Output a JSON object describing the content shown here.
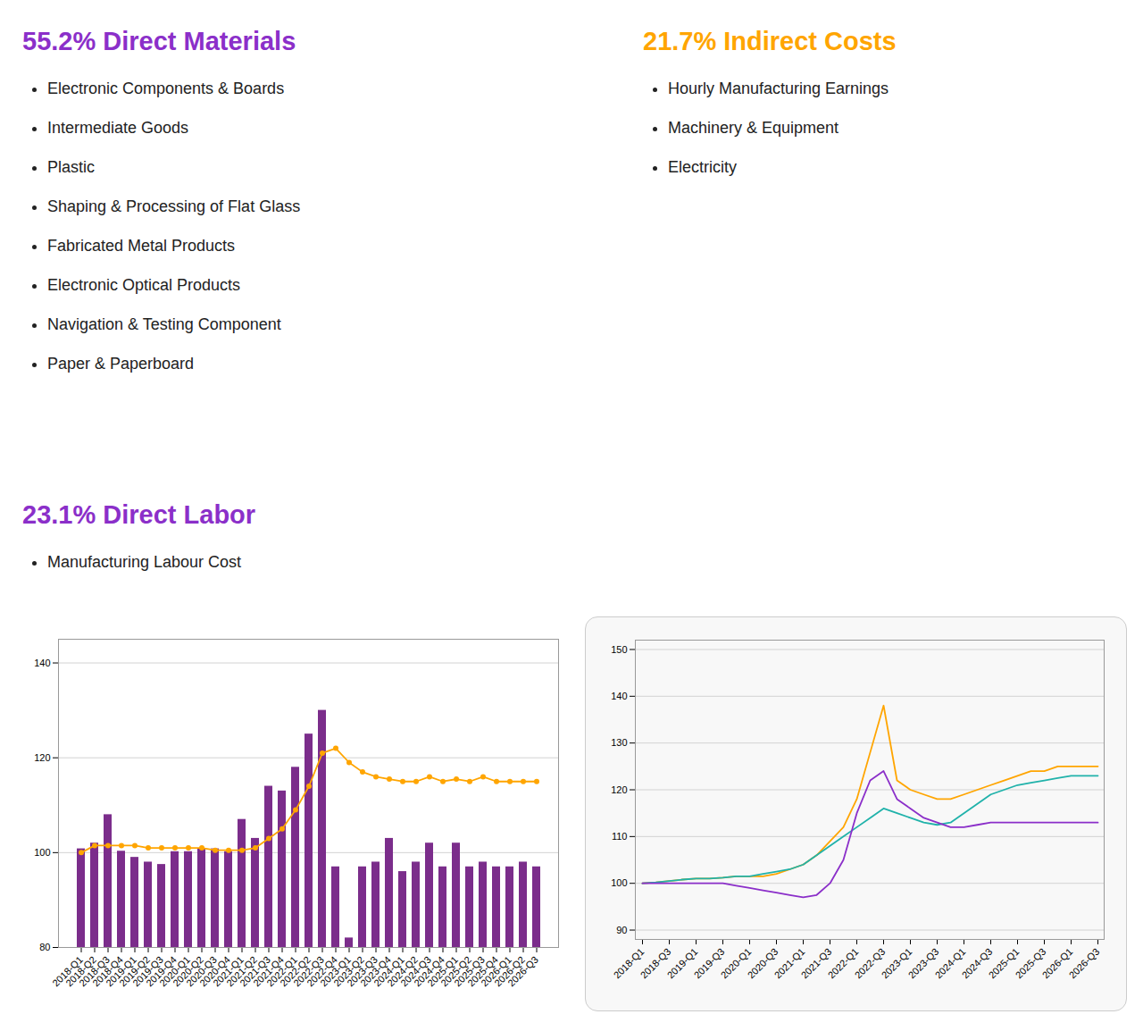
{
  "annotations": [
    {
      "text": "55.2% Direct Materials",
      "color": "#8B2FC9",
      "items_color": "#222222",
      "items": [
        "Electronic Components & Boards",
        "Intermediate Goods",
        "Plastic",
        "Shaping & Processing of Flat Glass",
        "Fabricated Metal Products",
        "Electronic Optical Products",
        "Navigation & Testing Component",
        "Paper & Paperboard"
      ]
    },
    {
      "text": "21.7% Indirect Costs",
      "color": "#FFA500",
      "items_color": "#222222",
      "items": [
        "Hourly Manufacturing Earnings",
        "Machinery & Equipment",
        "Electricity"
      ]
    },
    {
      "text": "23.1% Direct Labor",
      "color": "#8B2FC9",
      "items_color": "#222222",
      "items": [
        "Manufacturing Labour Cost"
      ]
    }
  ],
  "chart_data": [
    {
      "type": "bar",
      "categories": [
        "2018-Q1",
        "2018-Q2",
        "2018-Q3",
        "2018-Q4",
        "2019-Q1",
        "2019-Q2",
        "2019-Q3",
        "2019-Q4",
        "2020-Q1",
        "2020-Q2",
        "2020-Q3",
        "2020-Q4",
        "2021-Q1",
        "2021-Q2",
        "2021-Q3",
        "2021-Q4",
        "2022-Q1",
        "2022-Q2",
        "2022-Q3",
        "2022-Q4",
        "2023-Q1",
        "2023-Q2",
        "2023-Q3",
        "2023-Q4",
        "2024-Q1",
        "2024-Q2",
        "2024-Q3",
        "2024-Q4",
        "2025-Q1",
        "2025-Q2",
        "2025-Q3",
        "2025-Q4",
        "2026-Q1",
        "2026-Q2",
        "2026-Q3"
      ],
      "series": [
        {
          "type": "bar",
          "color": "#7B2D8B",
          "values": [
            100.8,
            102,
            108,
            100.3,
            99,
            98,
            97.5,
            100.2,
            100.2,
            100.8,
            100.8,
            100.2,
            107,
            103,
            114,
            113,
            118,
            125,
            130,
            97,
            82,
            97,
            98,
            103,
            96,
            98,
            102,
            97,
            102,
            97,
            98,
            97,
            97,
            98,
            97
          ]
        },
        {
          "type": "line",
          "color": "#FFA500",
          "marker": "circle",
          "values": [
            100,
            101.5,
            101.5,
            101.5,
            101.5,
            101,
            101,
            101,
            101,
            101,
            100.5,
            100.5,
            100.5,
            101,
            103,
            105,
            109,
            114,
            121,
            122,
            119,
            117,
            116,
            115.5,
            115,
            115,
            116,
            115,
            115.5,
            115,
            116,
            115,
            115,
            115,
            115
          ]
        }
      ],
      "ylim": [
        80,
        145
      ],
      "yticks": [
        80,
        100,
        120,
        140
      ],
      "grid": true
    },
    {
      "type": "line",
      "categories": [
        "2018-Q1",
        null,
        "2018-Q3",
        null,
        "2019-Q1",
        null,
        "2019-Q3",
        null,
        "2020-Q1",
        null,
        "2020-Q3",
        null,
        "2021-Q1",
        null,
        "2021-Q3",
        null,
        "2022-Q1",
        null,
        "2022-Q3",
        null,
        "2023-Q1",
        null,
        "2023-Q3",
        null,
        "2024-Q1",
        null,
        "2024-Q3",
        null,
        "2025-Q1",
        null,
        "2025-Q3",
        null,
        "2026-Q1",
        null,
        "2026-Q3"
      ],
      "series": [
        {
          "color": "#FFA500",
          "values": [
            100,
            100.2,
            100.5,
            100.8,
            101,
            101,
            101.2,
            101.5,
            101.5,
            101.5,
            102,
            103,
            104,
            106,
            109,
            112,
            118,
            128,
            138,
            122,
            120,
            119,
            118,
            118,
            119,
            120,
            121,
            122,
            123,
            124,
            124,
            125,
            125,
            125,
            125
          ]
        },
        {
          "color": "#20B2AA",
          "values": [
            100,
            100.2,
            100.5,
            100.8,
            101,
            101,
            101.2,
            101.5,
            101.5,
            102,
            102.5,
            103,
            104,
            106,
            108,
            110,
            112,
            114,
            116,
            115,
            114,
            113,
            112.5,
            113,
            115,
            117,
            119,
            120,
            121,
            121.5,
            122,
            122.5,
            123,
            123,
            123
          ]
        },
        {
          "color": "#8B2FC9",
          "values": [
            100,
            100,
            100,
            100,
            100,
            100,
            100,
            99.5,
            99,
            98.5,
            98,
            97.5,
            97,
            97.5,
            100,
            105,
            115,
            122,
            124,
            118,
            116,
            114,
            113,
            112,
            112,
            112.5,
            113,
            113,
            113,
            113,
            113,
            113,
            113,
            113,
            113
          ]
        }
      ],
      "ylim": [
        88,
        152
      ],
      "yticks": [
        90,
        100,
        110,
        120,
        130,
        140,
        150
      ],
      "grid": true
    }
  ]
}
